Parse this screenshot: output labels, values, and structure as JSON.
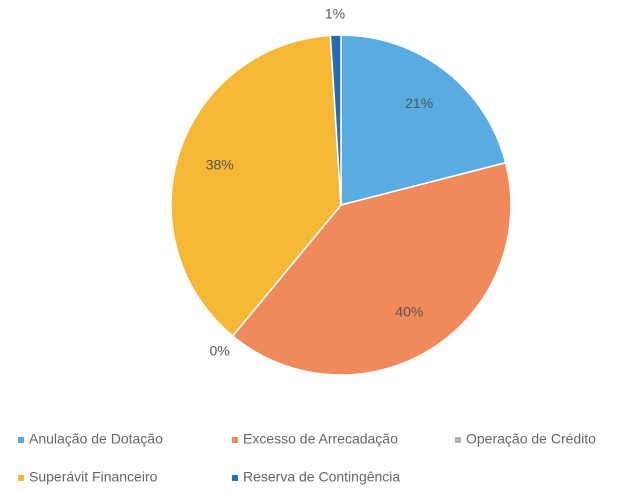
{
  "chart_data": {
    "type": "pie",
    "categories": [
      "Anulação de Dotação",
      "Excesso de Arrecadação",
      "Operação de Crédito",
      "Superávit Financeiro",
      "Reserva de Contingência"
    ],
    "values": [
      21,
      40,
      0,
      38,
      1
    ],
    "value_labels": [
      "21%",
      "40%",
      "0%",
      "38%",
      "1%"
    ],
    "colors": [
      "#58ace2",
      "#f08a5b",
      "#b3b3b3",
      "#f5b834",
      "#1f70b8"
    ],
    "legend": "bottom"
  }
}
